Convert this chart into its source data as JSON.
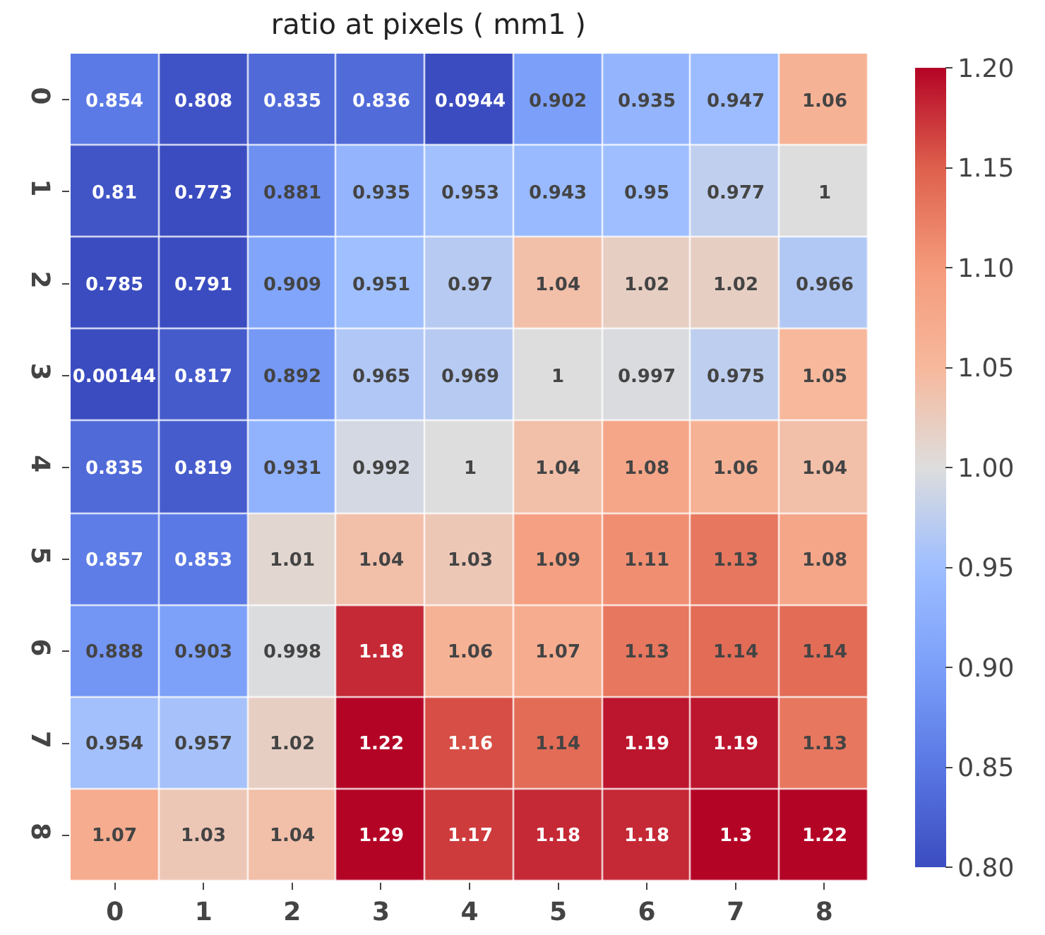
{
  "chart_data": {
    "type": "heatmap",
    "title": "ratio at pixels ( mm1 )",
    "categories": [
      "0",
      "1",
      "2",
      "3",
      "4",
      "5",
      "6",
      "7",
      "8"
    ],
    "y_categories": [
      "0",
      "1",
      "2",
      "3",
      "4",
      "5",
      "6",
      "7",
      "8"
    ],
    "cells": [
      [
        0.854,
        0.808,
        0.835,
        0.836,
        0.0944,
        0.902,
        0.935,
        0.947,
        1.06
      ],
      [
        0.81,
        0.773,
        0.881,
        0.935,
        0.953,
        0.943,
        0.95,
        0.977,
        1
      ],
      [
        0.785,
        0.791,
        0.909,
        0.951,
        0.97,
        1.04,
        1.02,
        1.02,
        0.966
      ],
      [
        0.00144,
        0.817,
        0.892,
        0.965,
        0.969,
        1,
        0.997,
        0.975,
        1.05
      ],
      [
        0.835,
        0.819,
        0.931,
        0.992,
        1,
        1.04,
        1.08,
        1.06,
        1.04
      ],
      [
        0.857,
        0.853,
        1.01,
        1.04,
        1.03,
        1.09,
        1.11,
        1.13,
        1.08
      ],
      [
        0.888,
        0.903,
        0.998,
        1.18,
        1.06,
        1.07,
        1.13,
        1.14,
        1.14
      ],
      [
        0.954,
        0.957,
        1.02,
        1.22,
        1.16,
        1.14,
        1.19,
        1.19,
        1.13
      ],
      [
        1.07,
        1.03,
        1.04,
        1.29,
        1.17,
        1.18,
        1.18,
        1.3,
        1.22
      ]
    ],
    "clim": [
      0.8,
      1.2
    ],
    "cticks": [
      {
        "value": 0.8,
        "label": "0.80"
      },
      {
        "value": 0.85,
        "label": "0.85"
      },
      {
        "value": 0.9,
        "label": "0.90"
      },
      {
        "value": 0.95,
        "label": "0.95"
      },
      {
        "value": 1,
        "label": "1.00"
      },
      {
        "value": 1.05,
        "label": "1.05"
      },
      {
        "value": 1.1,
        "label": "1.10"
      },
      {
        "value": 1.15,
        "label": "1.15"
      },
      {
        "value": 1.2,
        "label": "1.20"
      }
    ],
    "data_labels": true
  }
}
